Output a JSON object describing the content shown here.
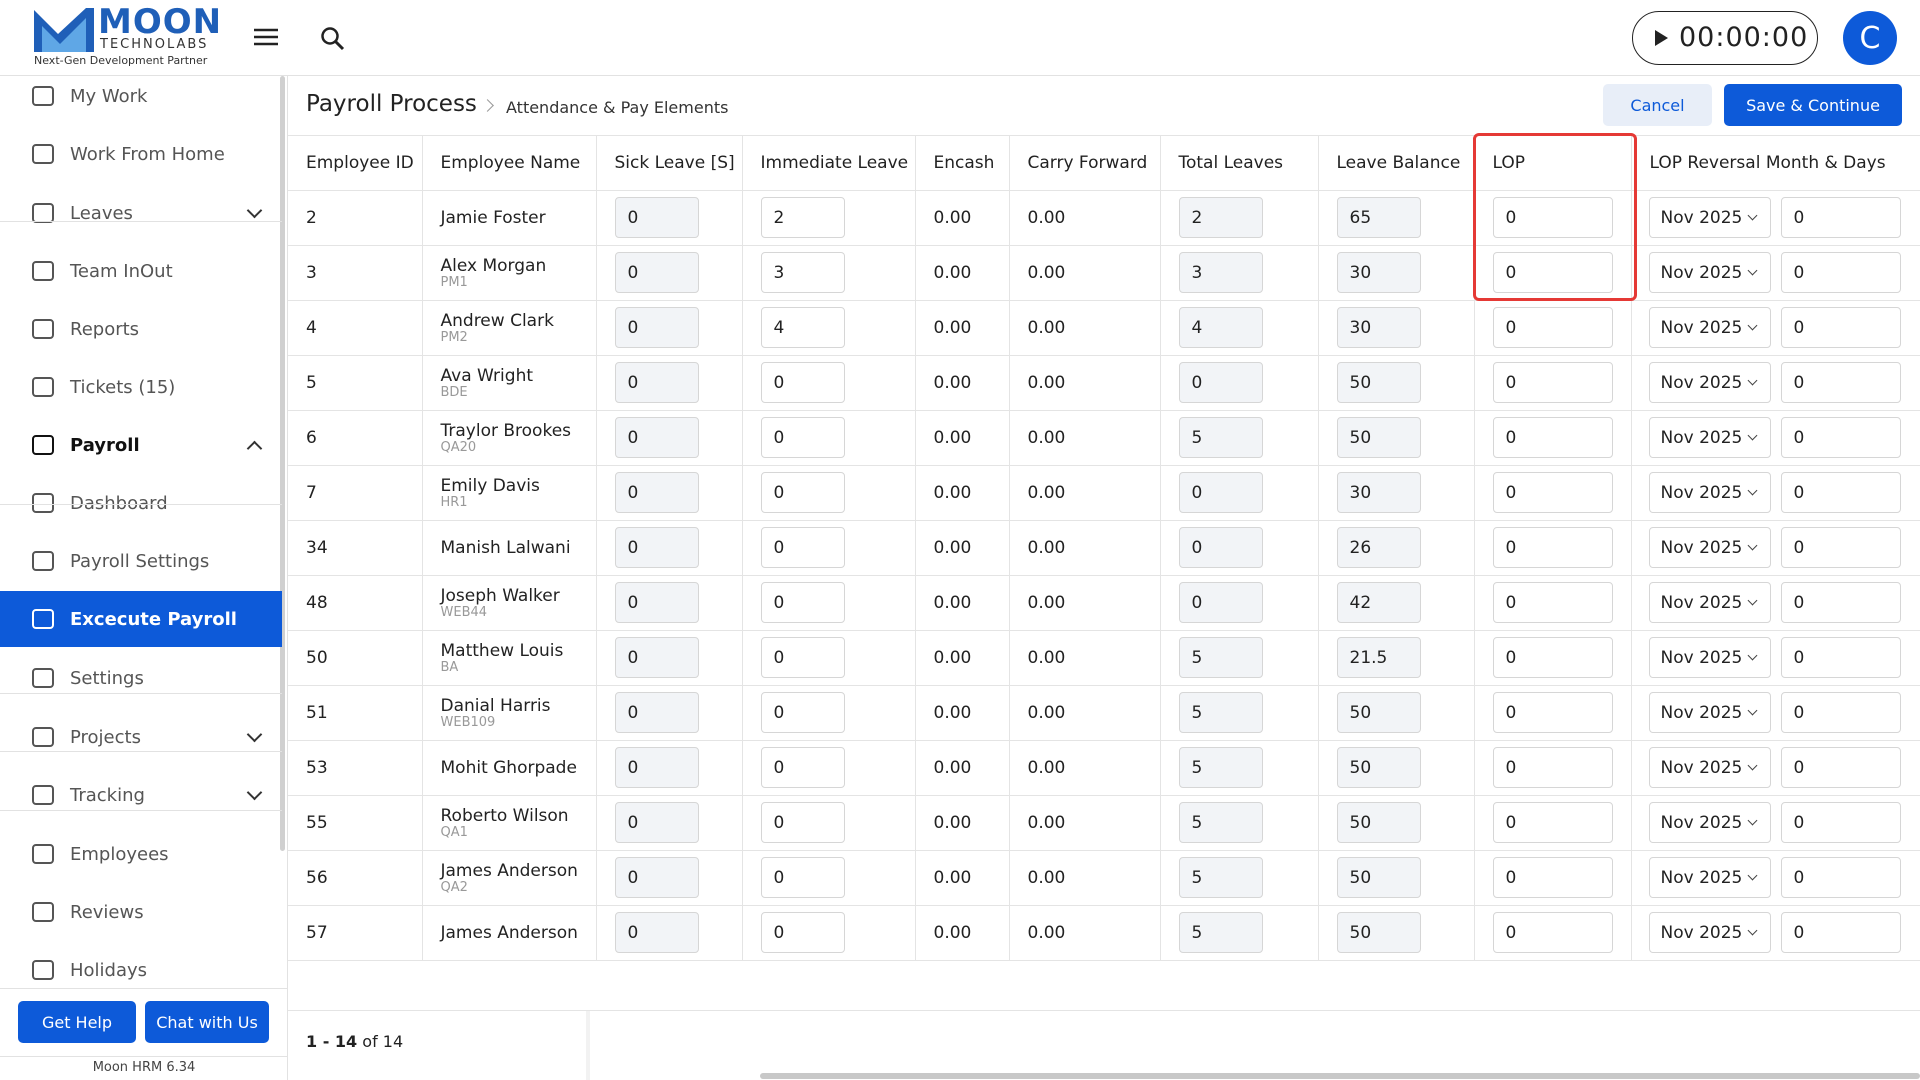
{
  "logo": {
    "brand": "MOON",
    "sub": "TECHNOLABS",
    "tagline": "Next-Gen Development Partner"
  },
  "timer": "00:00:00",
  "avatar": "C",
  "sidebar": {
    "items": [
      {
        "label": "My Work"
      },
      {
        "label": "Work From Home"
      },
      {
        "label": "Leaves",
        "expand": "down"
      },
      {
        "label": "Team InOut"
      },
      {
        "label": "Reports"
      },
      {
        "label": "Tickets (15)"
      },
      {
        "label": "Payroll",
        "expand": "up"
      },
      {
        "label": "Dashboard"
      },
      {
        "label": "Payroll Settings"
      },
      {
        "label": "Excecute Payroll",
        "active": true
      },
      {
        "label": "Settings"
      },
      {
        "label": "Projects",
        "expand": "down"
      },
      {
        "label": "Tracking",
        "expand": "down"
      },
      {
        "label": "Employees"
      },
      {
        "label": "Reviews"
      },
      {
        "label": "Holidays"
      }
    ],
    "help": "Get Help",
    "chat": "Chat with Us",
    "version": "Moon HRM 6.34"
  },
  "header": {
    "title": "Payroll Process",
    "crumb": "Attendance & Pay Elements",
    "cancel": "Cancel",
    "save": "Save & Continue"
  },
  "table": {
    "columns": [
      "Employee ID",
      "Employee Name",
      "Sick Leave [S]",
      "Immediate Leave",
      "Encash",
      "Carry Forward",
      "Total Leaves",
      "Leave Balance",
      "LOP",
      "LOP Reversal Month & Days"
    ],
    "rows": [
      {
        "id": "2",
        "name": "Jamie Foster",
        "sick": "0",
        "immediate": "2",
        "encash": "0.00",
        "carry": "0.00",
        "total": "2",
        "balance": "65",
        "lop": "0",
        "month": "Nov 2025",
        "days": "0"
      },
      {
        "id": "3",
        "name": "Alex Morgan",
        "code": "PM1",
        "sick": "0",
        "immediate": "3",
        "encash": "0.00",
        "carry": "0.00",
        "total": "3",
        "balance": "30",
        "lop": "0",
        "month": "Nov 2025",
        "days": "0"
      },
      {
        "id": "4",
        "name": "Andrew Clark",
        "code": "PM2",
        "sick": "0",
        "immediate": "4",
        "encash": "0.00",
        "carry": "0.00",
        "total": "4",
        "balance": "30",
        "lop": "0",
        "month": "Nov 2025",
        "days": "0"
      },
      {
        "id": "5",
        "name": "Ava Wright",
        "code": "BDE",
        "sick": "0",
        "immediate": "0",
        "encash": "0.00",
        "carry": "0.00",
        "total": "0",
        "balance": "50",
        "lop": "0",
        "month": "Nov 2025",
        "days": "0"
      },
      {
        "id": "6",
        "name": "Traylor Brookes",
        "code": "QA20",
        "sick": "0",
        "immediate": "0",
        "encash": "0.00",
        "carry": "0.00",
        "total": "5",
        "balance": "50",
        "lop": "0",
        "month": "Nov 2025",
        "days": "0"
      },
      {
        "id": "7",
        "name": "Emily Davis",
        "code": "HR1",
        "sick": "0",
        "immediate": "0",
        "encash": "0.00",
        "carry": "0.00",
        "total": "0",
        "balance": "30",
        "lop": "0",
        "month": "Nov 2025",
        "days": "0"
      },
      {
        "id": "34",
        "name": "Manish Lalwani",
        "sick": "0",
        "immediate": "0",
        "encash": "0.00",
        "carry": "0.00",
        "total": "0",
        "balance": "26",
        "lop": "0",
        "month": "Nov 2025",
        "days": "0"
      },
      {
        "id": "48",
        "name": "Joseph Walker",
        "code": "WEB44",
        "sick": "0",
        "immediate": "0",
        "encash": "0.00",
        "carry": "0.00",
        "total": "0",
        "balance": "42",
        "lop": "0",
        "month": "Nov 2025",
        "days": "0"
      },
      {
        "id": "50",
        "name": "Matthew Louis",
        "code": "BA",
        "sick": "0",
        "immediate": "0",
        "encash": "0.00",
        "carry": "0.00",
        "total": "5",
        "balance": "21.5",
        "lop": "0",
        "month": "Nov 2025",
        "days": "0"
      },
      {
        "id": "51",
        "name": "Danial Harris",
        "code": "WEB109",
        "sick": "0",
        "immediate": "0",
        "encash": "0.00",
        "carry": "0.00",
        "total": "5",
        "balance": "50",
        "lop": "0",
        "month": "Nov 2025",
        "days": "0"
      },
      {
        "id": "53",
        "name": "Mohit Ghorpade",
        "sick": "0",
        "immediate": "0",
        "encash": "0.00",
        "carry": "0.00",
        "total": "5",
        "balance": "50",
        "lop": "0",
        "month": "Nov 2025",
        "days": "0"
      },
      {
        "id": "55",
        "name": "Roberto Wilson",
        "code": "QA1",
        "sick": "0",
        "immediate": "0",
        "encash": "0.00",
        "carry": "0.00",
        "total": "5",
        "balance": "50",
        "lop": "0",
        "month": "Nov 2025",
        "days": "0"
      },
      {
        "id": "56",
        "name": "James Anderson",
        "code": "QA2",
        "sick": "0",
        "immediate": "0",
        "encash": "0.00",
        "carry": "0.00",
        "total": "5",
        "balance": "50",
        "lop": "0",
        "month": "Nov 2025",
        "days": "0"
      },
      {
        "id": "57",
        "name": "James Anderson",
        "sick": "0",
        "immediate": "0",
        "encash": "0.00",
        "carry": "0.00",
        "total": "5",
        "balance": "50",
        "lop": "0",
        "month": "Nov 2025",
        "days": "0"
      }
    ]
  },
  "pagination": {
    "range": "1 - 14",
    "of": "of 14"
  }
}
